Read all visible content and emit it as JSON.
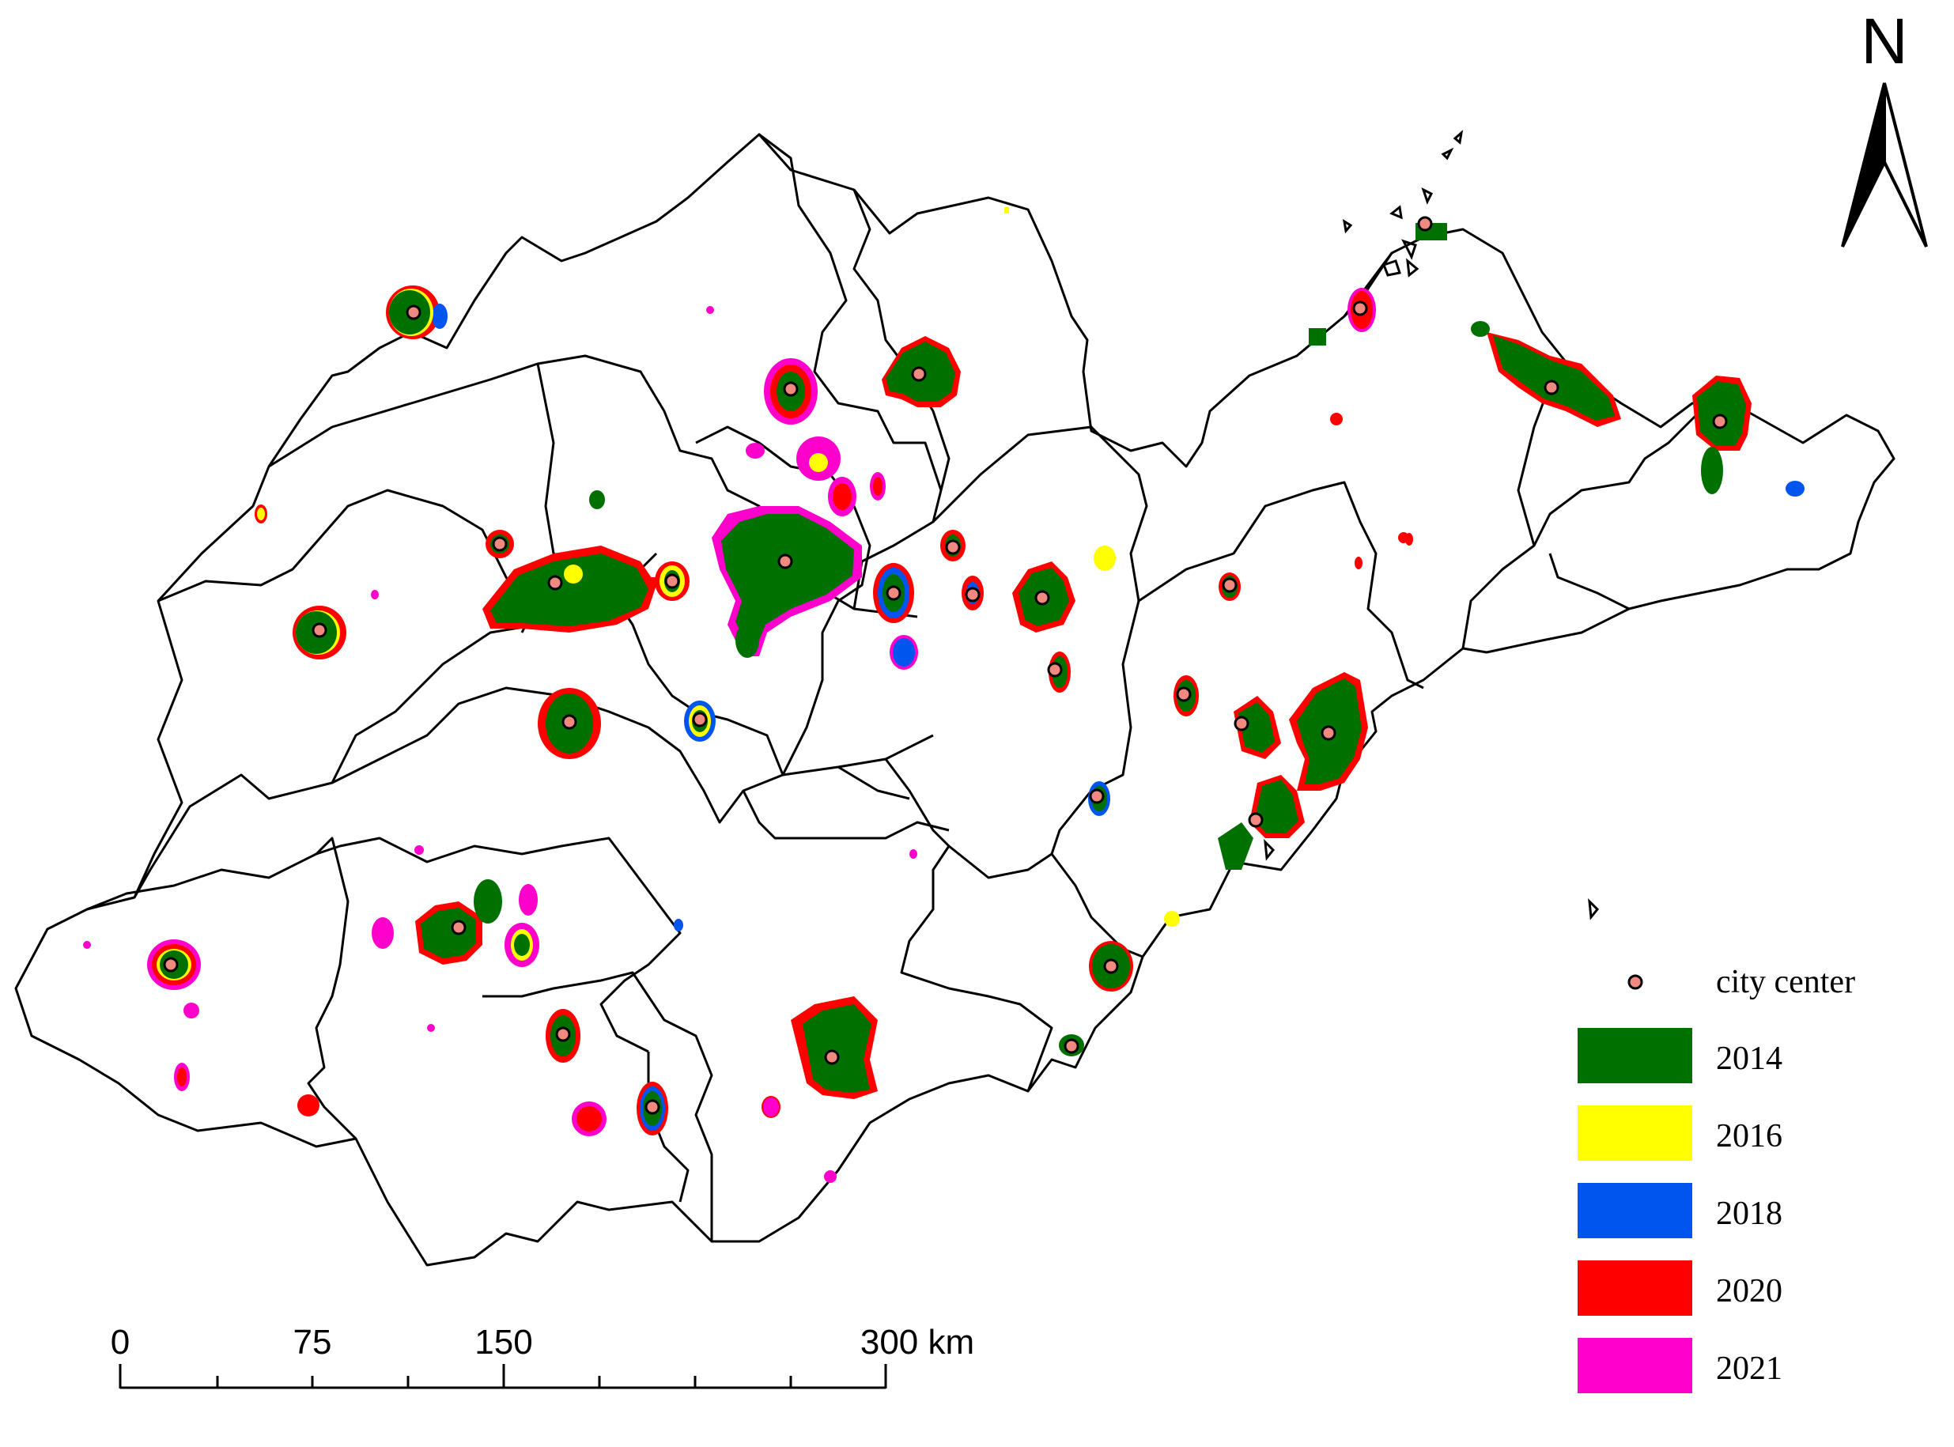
{
  "north_arrow": {
    "label": "N"
  },
  "legend": {
    "city_center_label": "city center",
    "items": [
      {
        "label": "2014",
        "color": "#007000"
      },
      {
        "label": "2016",
        "color": "#ffff00"
      },
      {
        "label": "2018",
        "color": "#0055ee"
      },
      {
        "label": "2020",
        "color": "#ff0000"
      },
      {
        "label": "2021",
        "color": "#ff00cc"
      }
    ],
    "city_center_color": "#f08a80"
  },
  "scale_bar": {
    "labels": [
      "0",
      "75",
      "150",
      "300 km"
    ]
  }
}
